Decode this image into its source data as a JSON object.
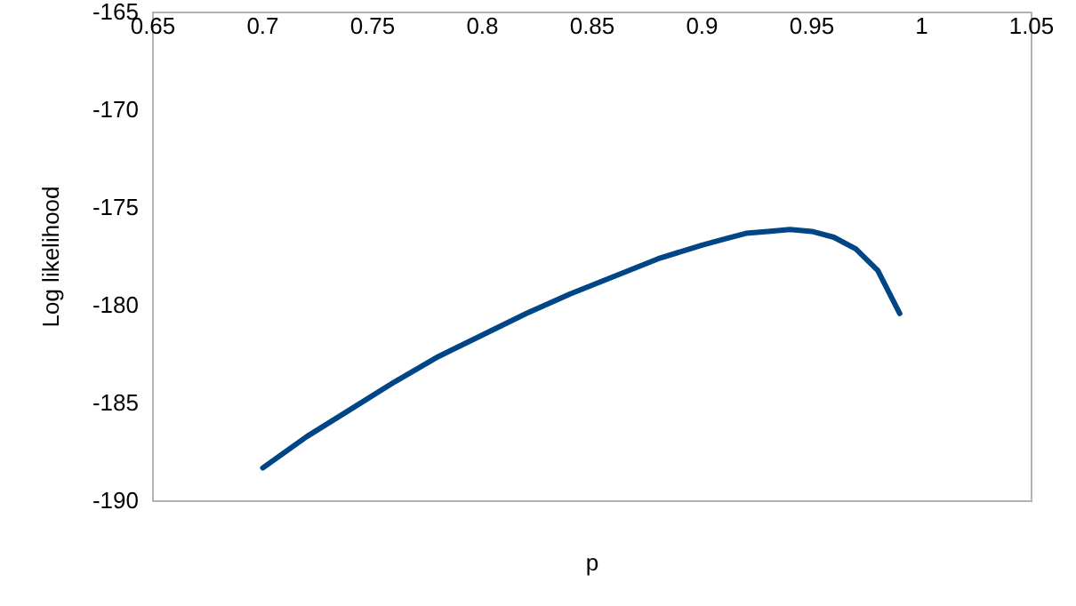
{
  "chart_data": {
    "type": "line",
    "xlabel": "p",
    "ylabel": "Log likelihood",
    "x": [
      0.7,
      0.72,
      0.74,
      0.76,
      0.78,
      0.8,
      0.82,
      0.84,
      0.86,
      0.88,
      0.9,
      0.91,
      0.92,
      0.93,
      0.94,
      0.95,
      0.96,
      0.97,
      0.98,
      0.99
    ],
    "series": [
      {
        "color": "#004586",
        "values": [
          -188.3,
          -186.7,
          -185.3,
          -183.9,
          -182.6,
          -181.5,
          -180.4,
          -179.4,
          -178.5,
          -177.6,
          -176.9,
          -176.6,
          -176.3,
          -176.2,
          -176.1,
          -176.2,
          -176.5,
          -177.1,
          -178.2,
          -180.4
        ]
      }
    ],
    "xlim": [
      0.65,
      1.05
    ],
    "xticks": [
      {
        "value": 0.65,
        "label": "0.65"
      },
      {
        "value": 0.7,
        "label": "0.7"
      },
      {
        "value": 0.75,
        "label": "0.75"
      },
      {
        "value": 0.8,
        "label": "0.8"
      },
      {
        "value": 0.85,
        "label": "0.85"
      },
      {
        "value": 0.9,
        "label": "0.9"
      },
      {
        "value": 0.95,
        "label": "0.95"
      },
      {
        "value": 1,
        "label": "1"
      },
      {
        "value": 1.05,
        "label": "1.05"
      }
    ],
    "ylim": [
      -190,
      -165
    ],
    "yticks": [
      -190,
      -185,
      -180,
      -175,
      -170,
      -165
    ],
    "grid": false,
    "marker": "none",
    "line_style": "solid"
  }
}
